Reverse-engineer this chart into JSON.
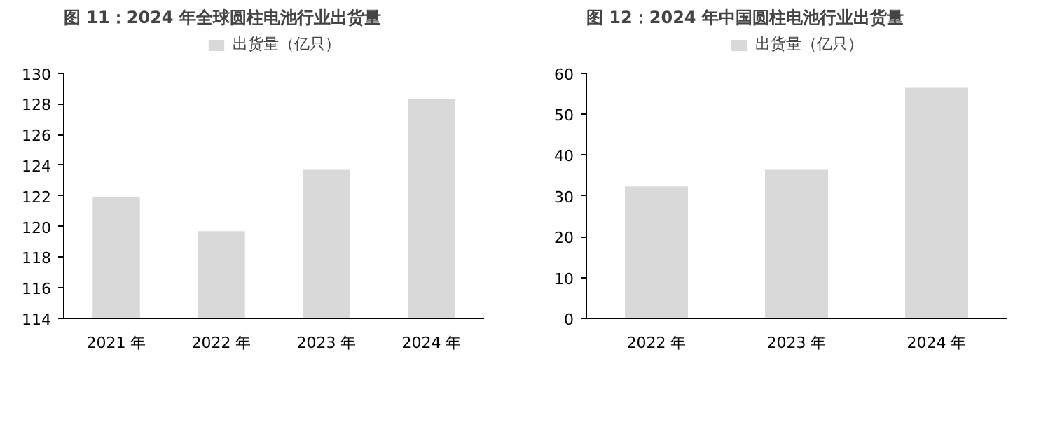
{
  "chart_data": [
    {
      "type": "bar",
      "title": "图 11：2024 年全球圆柱电池行业出货量",
      "categories": [
        "2021 年",
        "2022 年",
        "2023 年",
        "2024 年"
      ],
      "series": [
        {
          "name": "出货量（亿只）",
          "color": "#d9d9d9",
          "values": [
            121.9,
            119.7,
            123.7,
            128.3
          ]
        }
      ],
      "ylim": [
        114,
        130
      ],
      "yticks": [
        114,
        116,
        118,
        120,
        122,
        124,
        126,
        128,
        130
      ],
      "grid": false,
      "legend": "top"
    },
    {
      "type": "bar",
      "title": "图 12：2024 年中国圆柱电池行业出货量",
      "categories": [
        "2022 年",
        "2023 年",
        "2024 年"
      ],
      "series": [
        {
          "name": "出货量（亿只）",
          "color": "#d9d9d9",
          "values": [
            32.3,
            36.4,
            56.4
          ]
        }
      ],
      "ylim": [
        0,
        60
      ],
      "yticks": [
        0,
        10,
        20,
        30,
        40,
        50,
        60
      ],
      "grid": false,
      "legend": "top"
    }
  ]
}
